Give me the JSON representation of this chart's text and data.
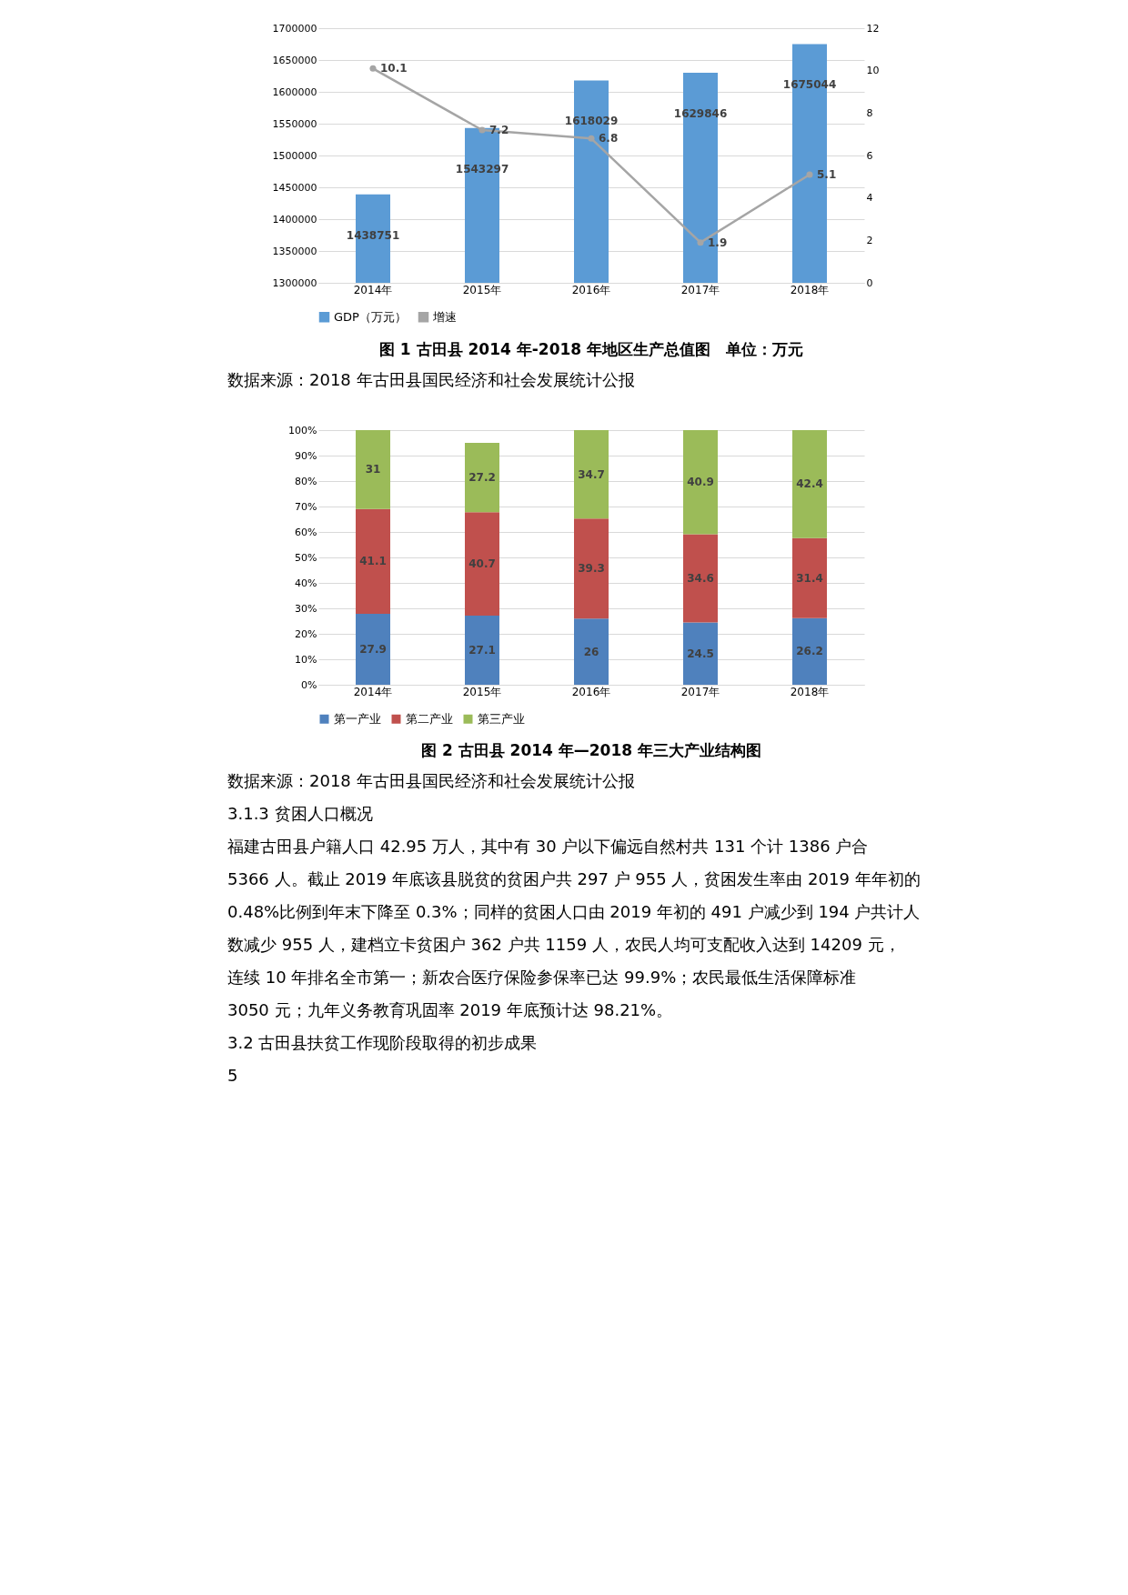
{
  "chart_data": [
    {
      "type": "bar",
      "title": "图 1 古田县 2014 年-2018 年地区生产总值图　单位：万元",
      "categories": [
        "2014年",
        "2015年",
        "2016年",
        "2017年",
        "2018年"
      ],
      "series": [
        {
          "name": "GDP（万元）",
          "color": "#5b9bd5",
          "values": [
            1438751,
            1543297,
            1618029,
            1629846,
            1675044
          ]
        },
        {
          "name": "增速",
          "type": "line",
          "axis": "y2",
          "color": "#a5a5a5",
          "values": [
            10.1,
            7.2,
            6.8,
            1.9,
            5.1
          ]
        }
      ],
      "ylim": [
        1300000,
        1700000
      ],
      "yticks": [
        1300000,
        1350000,
        1400000,
        1450000,
        1500000,
        1550000,
        1600000,
        1650000,
        1700000
      ],
      "y2lim": [
        0,
        12
      ],
      "y2ticks": [
        0,
        2,
        4,
        6,
        8,
        10,
        12
      ],
      "data_labels": true,
      "grid": "y",
      "legend": "bottom",
      "marker": "circle",
      "line_style": "solid",
      "annotations": [
        "数据来源：2018 年古田县国民经济和社会发展统计公报"
      ]
    },
    {
      "type": "bar",
      "title": "图 2 古田县 2014 年—2018 年三大产业结构图",
      "stacked": true,
      "categories": [
        "2014年",
        "2015年",
        "2016年",
        "2017年",
        "2018年"
      ],
      "series": [
        {
          "name": "第一产业",
          "color": "#4f81bd",
          "values": [
            27.9,
            27.1,
            26,
            24.5,
            26.2
          ]
        },
        {
          "name": "第二产业",
          "color": "#c0504d",
          "values": [
            41.1,
            40.7,
            39.3,
            34.6,
            31.4
          ]
        },
        {
          "name": "第三产业",
          "color": "#9bbb59",
          "values": [
            31,
            27.2,
            34.7,
            40.9,
            42.4
          ]
        }
      ],
      "ylim": [
        0,
        100
      ],
      "yticks": [
        {
          "value": 0,
          "label": "0%"
        },
        {
          "value": 10,
          "label": "10%"
        },
        {
          "value": 20,
          "label": "20%"
        },
        {
          "value": 30,
          "label": "30%"
        },
        {
          "value": 40,
          "label": "40%"
        },
        {
          "value": 50,
          "label": "50%"
        },
        {
          "value": 60,
          "label": "60%"
        },
        {
          "value": 70,
          "label": "70%"
        },
        {
          "value": 80,
          "label": "80%"
        },
        {
          "value": 90,
          "label": "90%"
        },
        {
          "value": 100,
          "label": "100%"
        }
      ],
      "data_labels": true,
      "grid": "y",
      "legend": "bottom",
      "annotations": [
        "数据来源：2018 年古田县国民经济和社会发展统计公报",
        "3.1.3 贫困人口概况",
        "　　福建古田县户籍人口 42.95 万人，其中有 30 户以下偏远自然村共 131 个计 1386 户合",
        "5366 人。截止 2019 年底该县脱贫的贫困户共 297 户 955 人，贫困发生率由 2019 年年初的",
        "0.48%比例到年末下降至 0.3%；同样的贫困人口由 2019 年初的 491 户减少到 194 户共计人",
        "数减少 955 人，建档立卡贫困户 362 户共 1159 人，农民人均可支配收入达到 14209 元，",
        "连续 10 年排名全市第一；新农合医疗保险参保率已达 99.9%；农民最低生活保障标准",
        "3050 元；九年义务教育巩固率 2019 年底预计达 98.21%。",
        "3.2 古田县扶贫工作现阶段取得的初步成果",
        "5"
      ]
    }
  ]
}
